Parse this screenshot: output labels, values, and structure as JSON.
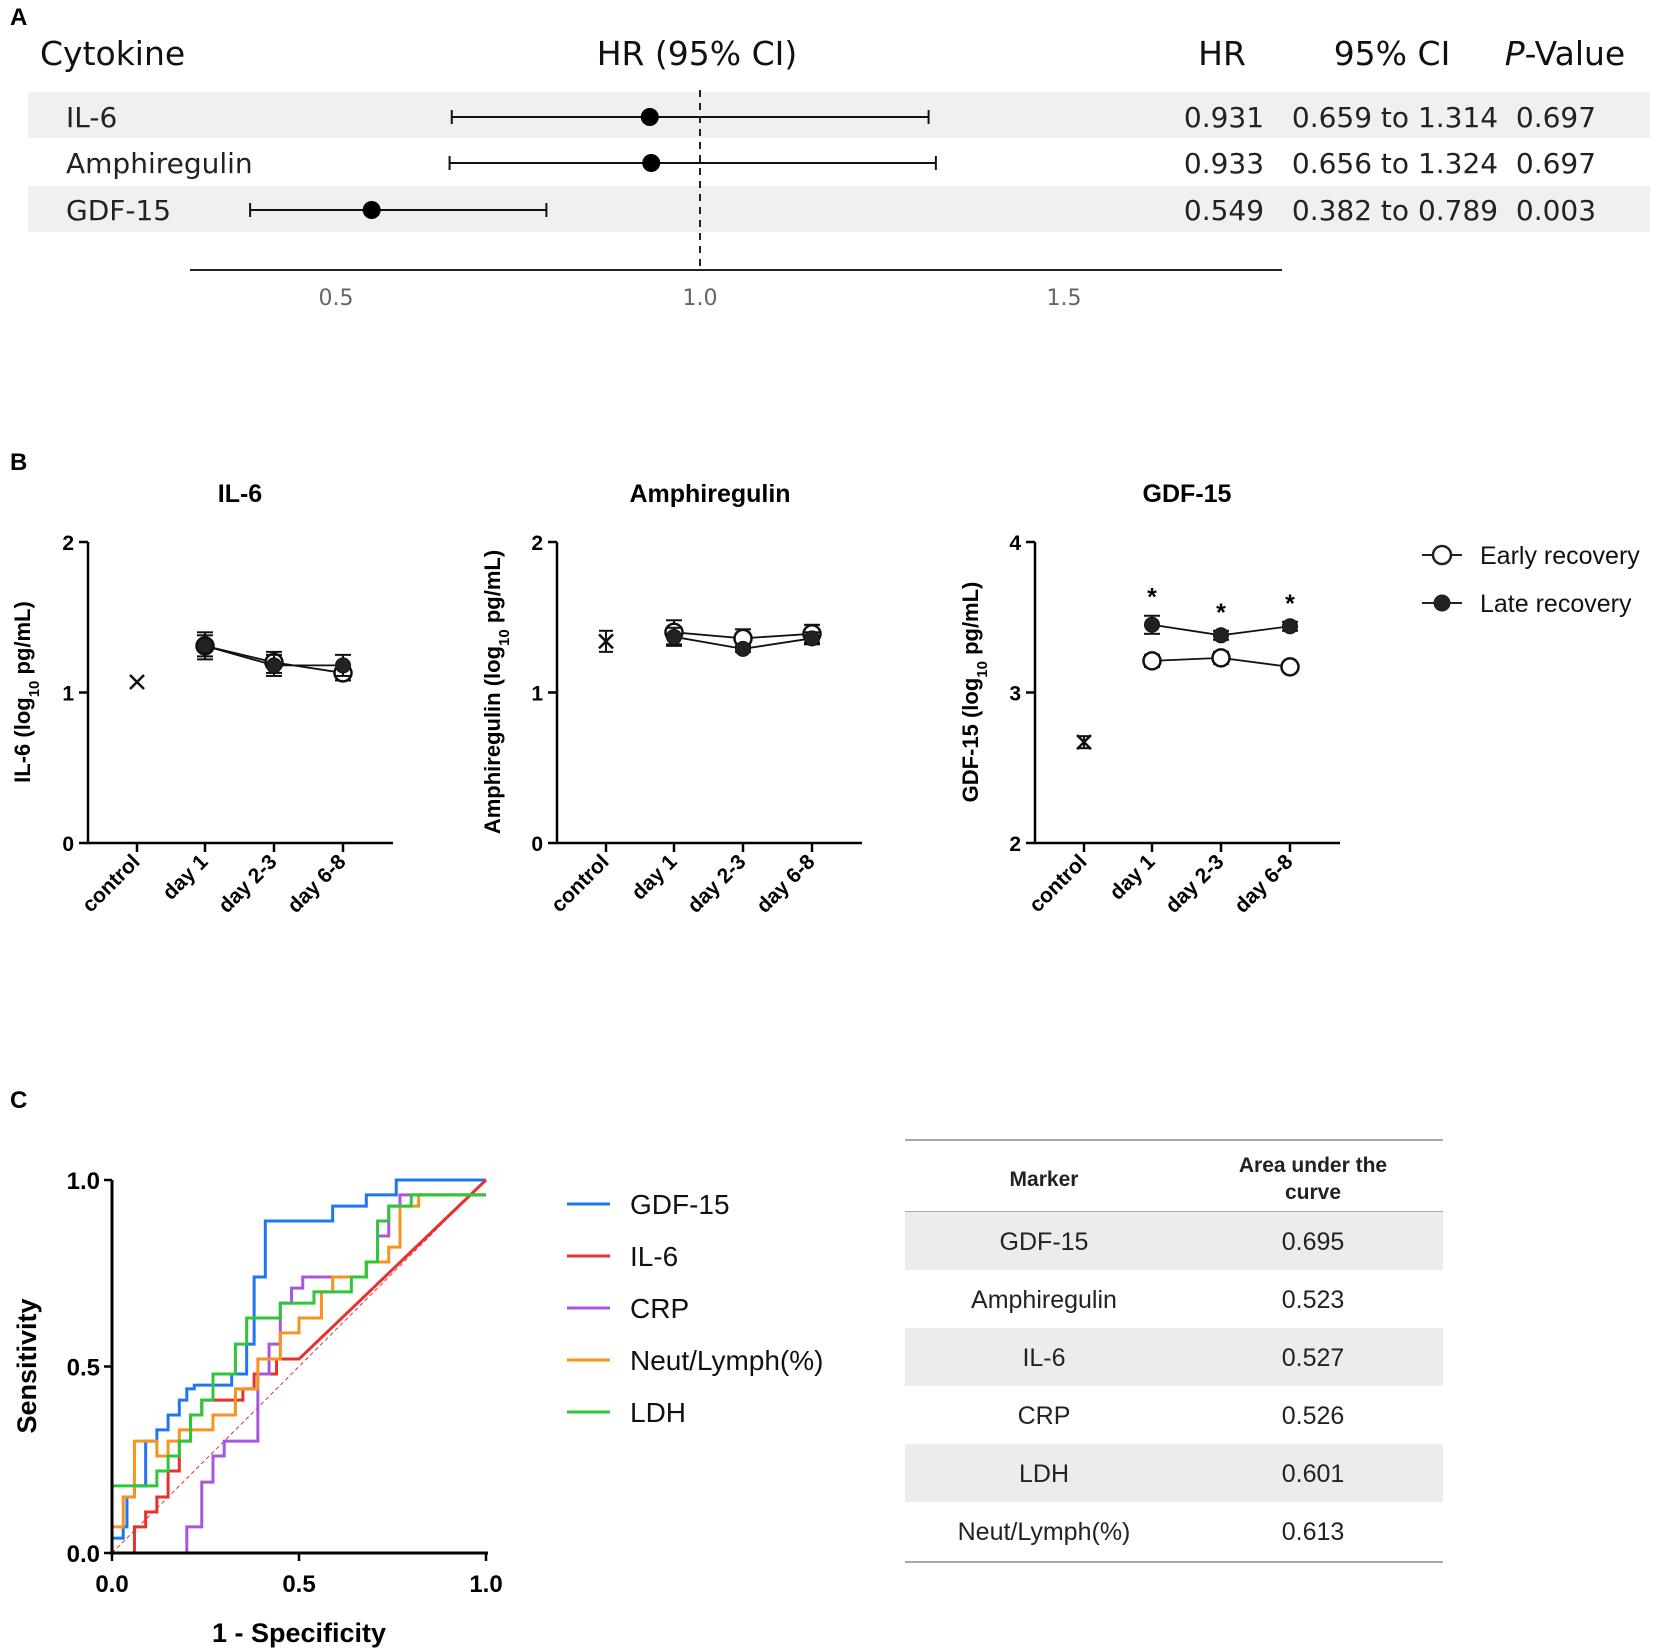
{
  "panels": {
    "a": "A",
    "b": "B",
    "c": "C"
  },
  "chart_data": [
    {
      "type": "forest",
      "panel": "A",
      "headers": {
        "label": "Cytokine",
        "plot": "HR (95% CI)",
        "hr": "HR",
        "ci": "95% CI",
        "p_italic": "P",
        "p_rest": "-Value"
      },
      "x_ticks": [
        0.5,
        1.0,
        1.5
      ],
      "x_tick_labels": [
        "0.5",
        "1.0",
        "1.5"
      ],
      "xlim": [
        0.3,
        1.8
      ],
      "reference": 1.0,
      "rows": [
        {
          "label": "IL-6",
          "hr": 0.931,
          "lo": 0.659,
          "hi": 1.314,
          "hr_text": "0.931",
          "ci_text": "0.659 to 1.314",
          "p_text": "0.697",
          "shaded": true
        },
        {
          "label": "Amphiregulin",
          "hr": 0.933,
          "lo": 0.656,
          "hi": 1.324,
          "hr_text": "0.933",
          "ci_text": "0.656 to 1.324",
          "p_text": "0.697",
          "shaded": false
        },
        {
          "label": "GDF-15",
          "hr": 0.549,
          "lo": 0.382,
          "hi": 0.789,
          "hr_text": "0.549",
          "ci_text": "0.382 to 0.789",
          "p_text": "0.003",
          "shaded": true
        }
      ]
    },
    {
      "type": "line",
      "panel": "B",
      "categories": [
        "control",
        "day 1",
        "day 2-3",
        "day 6-8"
      ],
      "legend": {
        "early": "Early recovery",
        "late": "Late recovery"
      },
      "ylabel_sub": "10",
      "ylabel_tail": " pg/mL)",
      "charts": [
        {
          "title": "IL-6",
          "ylabel_head": "IL-6 (log",
          "ylim": [
            0,
            2
          ],
          "yticks": [
            0,
            1,
            2
          ],
          "ytick_labels": [
            "0",
            "1",
            "2"
          ],
          "control": {
            "value": 1.07,
            "err": 0.0
          },
          "early": {
            "values": [
              1.31,
              1.2,
              1.13
            ],
            "err": [
              0.07,
              0.07,
              0.05
            ]
          },
          "late": {
            "values": [
              1.31,
              1.18,
              1.18
            ],
            "err": [
              0.09,
              0.07,
              0.07
            ]
          },
          "stars": []
        },
        {
          "title": "Amphiregulin",
          "ylabel_head": "Amphiregulin (log",
          "ylim": [
            0,
            2
          ],
          "yticks": [
            0,
            1,
            2
          ],
          "ytick_labels": [
            "0",
            "1",
            "2"
          ],
          "control": {
            "value": 1.34,
            "err": 0.07
          },
          "early": {
            "values": [
              1.4,
              1.36,
              1.39
            ],
            "err": [
              0.08,
              0.06,
              0.06
            ]
          },
          "late": {
            "values": [
              1.37,
              1.29,
              1.36
            ],
            "err": [
              0.06,
              0.02,
              0.04
            ]
          },
          "stars": []
        },
        {
          "title": "GDF-15",
          "ylabel_head": "GDF-15 (log",
          "ylim": [
            2,
            4
          ],
          "yticks": [
            2,
            3,
            4
          ],
          "ytick_labels": [
            "2",
            "3",
            "4"
          ],
          "control": {
            "value": 2.67,
            "err": 0.04
          },
          "early": {
            "values": [
              3.21,
              3.23,
              3.17
            ],
            "err": [
              0.04,
              0.04,
              0.02
            ]
          },
          "late": {
            "values": [
              3.45,
              3.38,
              3.44
            ],
            "err": [
              0.06,
              0.03,
              0.03
            ]
          },
          "stars": [
            "*",
            "*",
            "*"
          ]
        }
      ]
    },
    {
      "type": "roc",
      "panel": "C",
      "xlabel": "1 - Specificity",
      "ylabel": "Sensitivity",
      "xlim": [
        0,
        1
      ],
      "ylim": [
        0,
        1
      ],
      "xticks": [
        "0.0",
        "0.5",
        "1.0"
      ],
      "yticks": [
        "0.0",
        "0.5",
        "1.0"
      ],
      "series": [
        {
          "name": "GDF-15",
          "color": "#1f77f0",
          "points": [
            [
              0,
              0
            ],
            [
              0,
              0.04
            ],
            [
              0.03,
              0.04
            ],
            [
              0.03,
              0.07
            ],
            [
              0.04,
              0.07
            ],
            [
              0.04,
              0.15
            ],
            [
              0.06,
              0.15
            ],
            [
              0.06,
              0.18
            ],
            [
              0.09,
              0.18
            ],
            [
              0.09,
              0.3
            ],
            [
              0.12,
              0.3
            ],
            [
              0.12,
              0.33
            ],
            [
              0.15,
              0.33
            ],
            [
              0.15,
              0.37
            ],
            [
              0.18,
              0.37
            ],
            [
              0.18,
              0.41
            ],
            [
              0.2,
              0.41
            ],
            [
              0.2,
              0.44
            ],
            [
              0.22,
              0.44
            ],
            [
              0.22,
              0.45
            ],
            [
              0.32,
              0.45
            ],
            [
              0.32,
              0.48
            ],
            [
              0.36,
              0.48
            ],
            [
              0.36,
              0.56
            ],
            [
              0.38,
              0.56
            ],
            [
              0.38,
              0.74
            ],
            [
              0.41,
              0.74
            ],
            [
              0.41,
              0.89
            ],
            [
              0.59,
              0.89
            ],
            [
              0.59,
              0.93
            ],
            [
              0.68,
              0.93
            ],
            [
              0.68,
              0.96
            ],
            [
              0.76,
              0.96
            ],
            [
              0.76,
              1.0
            ],
            [
              1.0,
              1.0
            ]
          ]
        },
        {
          "name": "IL-6",
          "color": "#e8302e",
          "points": [
            [
              0,
              0
            ],
            [
              0.06,
              0
            ],
            [
              0.06,
              0.07
            ],
            [
              0.09,
              0.07
            ],
            [
              0.09,
              0.11
            ],
            [
              0.12,
              0.11
            ],
            [
              0.12,
              0.15
            ],
            [
              0.15,
              0.15
            ],
            [
              0.15,
              0.22
            ],
            [
              0.18,
              0.22
            ],
            [
              0.18,
              0.3
            ],
            [
              0.21,
              0.3
            ],
            [
              0.21,
              0.37
            ],
            [
              0.24,
              0.37
            ],
            [
              0.24,
              0.41
            ],
            [
              0.35,
              0.41
            ],
            [
              0.35,
              0.44
            ],
            [
              0.38,
              0.44
            ],
            [
              0.38,
              0.48
            ],
            [
              0.44,
              0.48
            ],
            [
              0.44,
              0.52
            ],
            [
              0.5,
              0.52
            ],
            [
              1.0,
              1.0
            ]
          ]
        },
        {
          "name": "CRP",
          "color": "#a855e0",
          "points": [
            [
              0,
              0
            ],
            [
              0.2,
              0
            ],
            [
              0.2,
              0.07
            ],
            [
              0.24,
              0.07
            ],
            [
              0.24,
              0.19
            ],
            [
              0.27,
              0.19
            ],
            [
              0.27,
              0.26
            ],
            [
              0.3,
              0.26
            ],
            [
              0.3,
              0.3
            ],
            [
              0.39,
              0.3
            ],
            [
              0.39,
              0.48
            ],
            [
              0.42,
              0.48
            ],
            [
              0.42,
              0.56
            ],
            [
              0.45,
              0.56
            ],
            [
              0.45,
              0.67
            ],
            [
              0.48,
              0.67
            ],
            [
              0.48,
              0.71
            ],
            [
              0.51,
              0.71
            ],
            [
              0.51,
              0.74
            ],
            [
              0.68,
              0.74
            ],
            [
              0.68,
              0.78
            ],
            [
              0.71,
              0.78
            ],
            [
              0.71,
              0.85
            ],
            [
              0.74,
              0.85
            ],
            [
              0.74,
              0.93
            ],
            [
              0.77,
              0.93
            ],
            [
              0.77,
              0.96
            ],
            [
              1.0,
              0.96
            ]
          ]
        },
        {
          "name": "Neut/Lymph(%)",
          "color": "#f7931e",
          "points": [
            [
              0,
              0.07
            ],
            [
              0.03,
              0.07
            ],
            [
              0.03,
              0.15
            ],
            [
              0.06,
              0.15
            ],
            [
              0.06,
              0.3
            ],
            [
              0.12,
              0.3
            ],
            [
              0.12,
              0.26
            ],
            [
              0.15,
              0.26
            ],
            [
              0.15,
              0.3
            ],
            [
              0.18,
              0.3
            ],
            [
              0.18,
              0.33
            ],
            [
              0.27,
              0.33
            ],
            [
              0.27,
              0.37
            ],
            [
              0.33,
              0.37
            ],
            [
              0.33,
              0.44
            ],
            [
              0.39,
              0.44
            ],
            [
              0.39,
              0.52
            ],
            [
              0.45,
              0.52
            ],
            [
              0.45,
              0.59
            ],
            [
              0.5,
              0.59
            ],
            [
              0.5,
              0.63
            ],
            [
              0.56,
              0.63
            ],
            [
              0.56,
              0.7
            ],
            [
              0.59,
              0.7
            ],
            [
              0.59,
              0.74
            ],
            [
              0.68,
              0.74
            ],
            [
              0.68,
              0.78
            ],
            [
              0.74,
              0.78
            ],
            [
              0.74,
              0.82
            ],
            [
              0.77,
              0.82
            ],
            [
              0.77,
              0.93
            ],
            [
              0.82,
              0.93
            ],
            [
              0.82,
              0.96
            ],
            [
              1.0,
              0.96
            ]
          ]
        },
        {
          "name": "LDH",
          "color": "#2ec73a",
          "points": [
            [
              0,
              0.11
            ],
            [
              0,
              0.18
            ],
            [
              0.12,
              0.18
            ],
            [
              0.12,
              0.22
            ],
            [
              0.15,
              0.22
            ],
            [
              0.15,
              0.26
            ],
            [
              0.18,
              0.26
            ],
            [
              0.18,
              0.3
            ],
            [
              0.21,
              0.3
            ],
            [
              0.21,
              0.37
            ],
            [
              0.24,
              0.37
            ],
            [
              0.24,
              0.41
            ],
            [
              0.27,
              0.41
            ],
            [
              0.27,
              0.48
            ],
            [
              0.33,
              0.48
            ],
            [
              0.33,
              0.56
            ],
            [
              0.36,
              0.56
            ],
            [
              0.36,
              0.63
            ],
            [
              0.45,
              0.63
            ],
            [
              0.45,
              0.67
            ],
            [
              0.54,
              0.67
            ],
            [
              0.54,
              0.7
            ],
            [
              0.64,
              0.7
            ],
            [
              0.64,
              0.74
            ],
            [
              0.68,
              0.74
            ],
            [
              0.68,
              0.78
            ],
            [
              0.71,
              0.78
            ],
            [
              0.71,
              0.89
            ],
            [
              0.74,
              0.89
            ],
            [
              0.74,
              0.93
            ],
            [
              0.8,
              0.93
            ],
            [
              0.8,
              0.96
            ],
            [
              1.0,
              0.96
            ]
          ]
        }
      ],
      "table": {
        "headers": {
          "marker": "Marker",
          "auc_line1": "Area under the",
          "auc_line2": "curve"
        },
        "rows": [
          {
            "marker": "GDF-15",
            "auc": "0.695"
          },
          {
            "marker": "Amphiregulin",
            "auc": "0.523"
          },
          {
            "marker": "IL-6",
            "auc": "0.527"
          },
          {
            "marker": "CRP",
            "auc": "0.526"
          },
          {
            "marker": "LDH",
            "auc": "0.601"
          },
          {
            "marker": "Neut/Lymph(%)",
            "auc": "0.613"
          }
        ]
      }
    }
  ]
}
